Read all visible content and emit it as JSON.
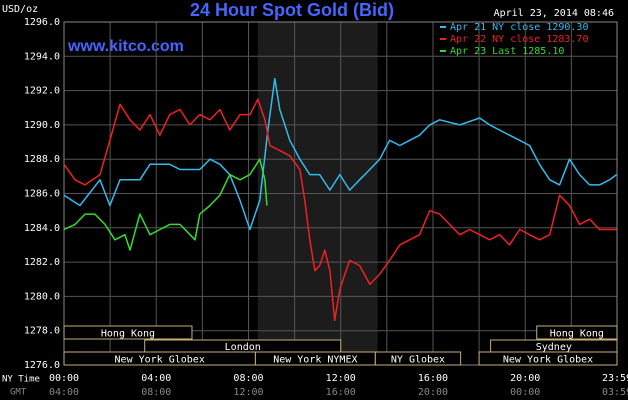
{
  "chart_data": {
    "type": "line",
    "title": "24 Hour Spot Gold (Bid)",
    "unit_label": "USD/oz",
    "timestamp": "April 23, 2014 08:46",
    "watermark": "www.kitco.com",
    "x_label": "NY Time",
    "x2_label": "GMT",
    "background": "#000000",
    "grid": true,
    "legend_position": "top-right",
    "xlim": [
      0,
      23.98
    ],
    "xticks": [
      {
        "value": 0,
        "label": "00:00"
      },
      {
        "value": 4,
        "label": "04:00"
      },
      {
        "value": 8,
        "label": "08:00"
      },
      {
        "value": 12,
        "label": "12:00"
      },
      {
        "value": 16,
        "label": "16:00"
      },
      {
        "value": 20,
        "label": "20:00"
      },
      {
        "value": 23.98,
        "label": "23:59"
      }
    ],
    "x_minor_ticks": [
      2,
      6,
      10,
      14,
      18,
      22
    ],
    "x2ticks": [
      {
        "value": 0,
        "label": "04:00"
      },
      {
        "value": 4,
        "label": "08:00"
      },
      {
        "value": 8,
        "label": "12:00"
      },
      {
        "value": 12,
        "label": "16:00"
      },
      {
        "value": 16,
        "label": "20:00"
      },
      {
        "value": 20,
        "label": "00:00"
      },
      {
        "value": 23.98,
        "label": "03:59"
      }
    ],
    "ylim": [
      1276,
      1296
    ],
    "yticks": [
      {
        "value": 1276,
        "label": "1276.0"
      },
      {
        "value": 1278,
        "label": "1278.0"
      },
      {
        "value": 1280,
        "label": "1280.0"
      },
      {
        "value": 1282,
        "label": "1282.0"
      },
      {
        "value": 1284,
        "label": "1284.0"
      },
      {
        "value": 1286,
        "label": "1286.0"
      },
      {
        "value": 1288,
        "label": "1288.0"
      },
      {
        "value": 1290,
        "label": "1290.0"
      },
      {
        "value": 1292,
        "label": "1292.0"
      },
      {
        "value": 1294,
        "label": "1294.0"
      },
      {
        "value": 1296,
        "label": "1296.0"
      }
    ],
    "shaded_range": [
      8.4,
      13.6
    ],
    "sessions": [
      [
        {
          "label": "Hong Kong",
          "start": 0,
          "end": 5.55
        },
        {
          "label": "Hong Kong",
          "start": 20.5,
          "end": 23.98
        }
      ],
      [
        {
          "label": "London",
          "start": 3.5,
          "end": 12.0
        },
        {
          "label": "Sydney",
          "start": 18.5,
          "end": 23.98
        }
      ],
      [
        {
          "label": "New York Globex",
          "start": 0,
          "end": 8.3
        },
        {
          "label": "New York NYMEX",
          "start": 8.3,
          "end": 13.5
        },
        {
          "label": "NY Globex",
          "start": 13.5,
          "end": 17.2
        },
        {
          "label": "New York Globex",
          "start": 18.0,
          "end": 23.98
        }
      ]
    ],
    "series": [
      {
        "name": "Apr 21 NY close 1290.30",
        "color": "#33bbee",
        "x": [
          0,
          0.69,
          1.56,
          1.99,
          2.43,
          3.29,
          3.73,
          4.59,
          5.03,
          5.89,
          6.33,
          6.76,
          7.19,
          7.63,
          8.06,
          8.49,
          8.84,
          9.14,
          9.36,
          9.79,
          10.23,
          10.66,
          11.09,
          11.53,
          11.96,
          12.39,
          12.82,
          13.26,
          13.69,
          14.12,
          14.56,
          14.99,
          15.42,
          15.86,
          16.29,
          17.16,
          18.02,
          18.46,
          19.32,
          19.76,
          20.19,
          20.62,
          21.06,
          21.49,
          21.92,
          22.36,
          22.79,
          23.22,
          23.66,
          23.96
        ],
        "values": [
          1285.9,
          1285.3,
          1286.8,
          1285.3,
          1286.8,
          1286.8,
          1287.7,
          1287.7,
          1287.4,
          1287.4,
          1288.0,
          1287.7,
          1287.1,
          1285.6,
          1283.9,
          1285.6,
          1289.7,
          1292.7,
          1290.9,
          1289.1,
          1288.0,
          1287.1,
          1287.1,
          1286.2,
          1287.1,
          1286.2,
          1286.8,
          1287.4,
          1288.0,
          1289.1,
          1288.8,
          1289.1,
          1289.4,
          1290.0,
          1290.3,
          1290.0,
          1290.4,
          1290.0,
          1289.4,
          1289.1,
          1288.8,
          1287.7,
          1286.8,
          1286.5,
          1288.0,
          1287.1,
          1286.5,
          1286.5,
          1286.8,
          1287.1
        ]
      },
      {
        "name": "Apr 22 NY close 1283.70",
        "color": "#ee2222",
        "x": [
          0,
          0.48,
          0.91,
          1.56,
          1.99,
          2.43,
          2.86,
          3.29,
          3.73,
          4.16,
          4.59,
          5.03,
          5.46,
          5.89,
          6.33,
          6.76,
          7.19,
          7.63,
          8.06,
          8.41,
          8.71,
          8.93,
          9.36,
          9.79,
          10.23,
          10.44,
          10.66,
          10.88,
          11.09,
          11.31,
          11.53,
          11.74,
          11.96,
          12.18,
          12.39,
          12.82,
          13.26,
          13.69,
          14.12,
          14.56,
          14.99,
          15.42,
          15.86,
          16.29,
          16.72,
          17.16,
          17.59,
          18.02,
          18.46,
          18.89,
          19.32,
          19.76,
          20.19,
          20.62,
          21.06,
          21.49,
          21.92,
          22.36,
          22.79,
          23.22,
          23.96
        ],
        "values": [
          1287.7,
          1286.8,
          1286.5,
          1287.1,
          1289.1,
          1291.2,
          1290.3,
          1289.7,
          1290.6,
          1289.4,
          1290.6,
          1290.9,
          1290.0,
          1290.6,
          1290.3,
          1290.9,
          1289.7,
          1290.6,
          1290.6,
          1291.5,
          1290.3,
          1288.8,
          1288.5,
          1288.2,
          1287.4,
          1285.6,
          1283.3,
          1281.5,
          1281.8,
          1282.7,
          1281.5,
          1278.6,
          1280.4,
          1281.3,
          1282.1,
          1281.8,
          1280.7,
          1281.3,
          1282.1,
          1283.0,
          1283.3,
          1283.6,
          1285.0,
          1284.8,
          1284.2,
          1283.6,
          1283.9,
          1283.6,
          1283.3,
          1283.6,
          1283.0,
          1283.9,
          1283.6,
          1283.3,
          1283.6,
          1285.9,
          1285.3,
          1284.2,
          1284.5,
          1283.9,
          1283.9
        ]
      },
      {
        "name": "Apr 23 Last 1285.10",
        "color": "#33dd33",
        "x": [
          0,
          0.48,
          0.91,
          1.34,
          1.78,
          2.21,
          2.64,
          2.86,
          3.29,
          3.73,
          4.16,
          4.59,
          5.03,
          5.68,
          5.89,
          6.33,
          6.76,
          7.19,
          7.63,
          8.06,
          8.49,
          8.71,
          8.8
        ],
        "values": [
          1283.9,
          1284.2,
          1284.8,
          1284.8,
          1284.2,
          1283.3,
          1283.6,
          1282.7,
          1284.8,
          1283.6,
          1283.9,
          1284.2,
          1284.2,
          1283.3,
          1284.8,
          1285.3,
          1285.9,
          1287.1,
          1286.8,
          1287.1,
          1288.0,
          1286.8,
          1285.3
        ]
      }
    ]
  }
}
